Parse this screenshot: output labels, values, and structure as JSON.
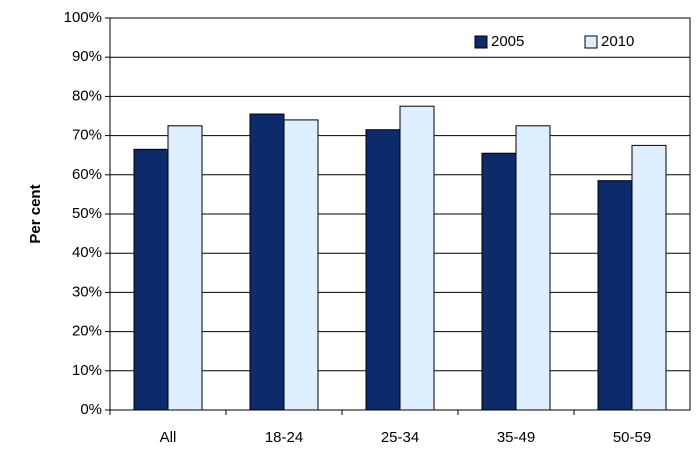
{
  "chart_data": {
    "type": "bar",
    "ylabel": "Per cent",
    "categories": [
      "All",
      "18-24",
      "25-34",
      "35-49",
      "50-59"
    ],
    "series": [
      {
        "name": "2005",
        "color": "#0d2a6b",
        "values": [
          66.5,
          75.5,
          71.5,
          65.5,
          58.5
        ]
      },
      {
        "name": "2010",
        "color": "#ddeeff",
        "values": [
          72.5,
          74,
          77.5,
          72.5,
          67.5
        ]
      }
    ],
    "ylim": [
      0,
      100
    ],
    "yticks": [
      {
        "value": 0,
        "label": "0%"
      },
      {
        "value": 10,
        "label": "10%"
      },
      {
        "value": 20,
        "label": "20%"
      },
      {
        "value": 30,
        "label": "30%"
      },
      {
        "value": 40,
        "label": "40%"
      },
      {
        "value": 50,
        "label": "50%"
      },
      {
        "value": 60,
        "label": "60%"
      },
      {
        "value": 70,
        "label": "70%"
      },
      {
        "value": 80,
        "label": "80%"
      },
      {
        "value": 90,
        "label": "90%"
      },
      {
        "value": 100,
        "label": "100%"
      }
    ],
    "grid": true,
    "legend": "upper right"
  }
}
